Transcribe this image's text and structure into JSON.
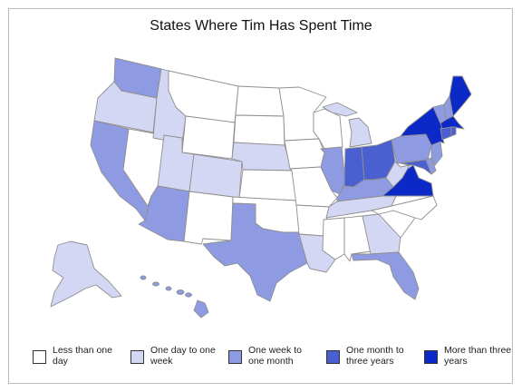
{
  "title": "States Where Tim Has Spent Time",
  "colors": {
    "less_than_one_day": "#ffffff",
    "one_day_to_one_week": "#d4d7f3",
    "one_week_to_one_month": "#8e9be2",
    "one_month_to_three_years": "#4a5fd0",
    "more_than_three_years": "#0b29c7"
  },
  "legend": [
    {
      "category": "less_than_one_day",
      "label": "Less than one day"
    },
    {
      "category": "one_day_to_one_week",
      "label": "One day to one week"
    },
    {
      "category": "one_week_to_one_month",
      "label": "One week to one month"
    },
    {
      "category": "one_month_to_three_years",
      "label": "One month to three years"
    },
    {
      "category": "more_than_three_years",
      "label": "More than three years"
    }
  ],
  "states": {
    "WA": "one_week_to_one_month",
    "OR": "one_day_to_one_week",
    "CA": "one_week_to_one_month",
    "NV": "less_than_one_day",
    "ID": "one_day_to_one_week",
    "MT": "less_than_one_day",
    "WY": "less_than_one_day",
    "UT": "one_day_to_one_week",
    "CO": "one_day_to_one_week",
    "AZ": "one_week_to_one_month",
    "NM": "less_than_one_day",
    "ND": "less_than_one_day",
    "SD": "less_than_one_day",
    "NE": "one_day_to_one_week",
    "KS": "less_than_one_day",
    "OK": "less_than_one_day",
    "TX": "one_week_to_one_month",
    "MN": "less_than_one_day",
    "IA": "less_than_one_day",
    "MO": "less_than_one_day",
    "AR": "less_than_one_day",
    "LA": "one_day_to_one_week",
    "WI": "less_than_one_day",
    "IL": "one_week_to_one_month",
    "MI": "one_day_to_one_week",
    "IN": "one_month_to_three_years",
    "OH": "one_month_to_three_years",
    "KY": "one_week_to_one_month",
    "TN": "one_day_to_one_week",
    "MS": "less_than_one_day",
    "AL": "less_than_one_day",
    "GA": "one_day_to_one_week",
    "FL": "one_week_to_one_month",
    "SC": "less_than_one_day",
    "NC": "less_than_one_day",
    "VA": "more_than_three_years",
    "WV": "one_day_to_one_week",
    "PA": "one_week_to_one_month",
    "NY": "more_than_three_years",
    "NJ": "one_week_to_one_month",
    "DE": "one_week_to_one_month",
    "MD": "one_month_to_three_years",
    "CT": "one_month_to_three_years",
    "RI": "one_month_to_three_years",
    "MA": "more_than_three_years",
    "VT": "one_week_to_one_month",
    "NH": "one_week_to_one_month",
    "ME": "more_than_three_years",
    "AK": "one_day_to_one_week",
    "HI": "one_week_to_one_month"
  }
}
